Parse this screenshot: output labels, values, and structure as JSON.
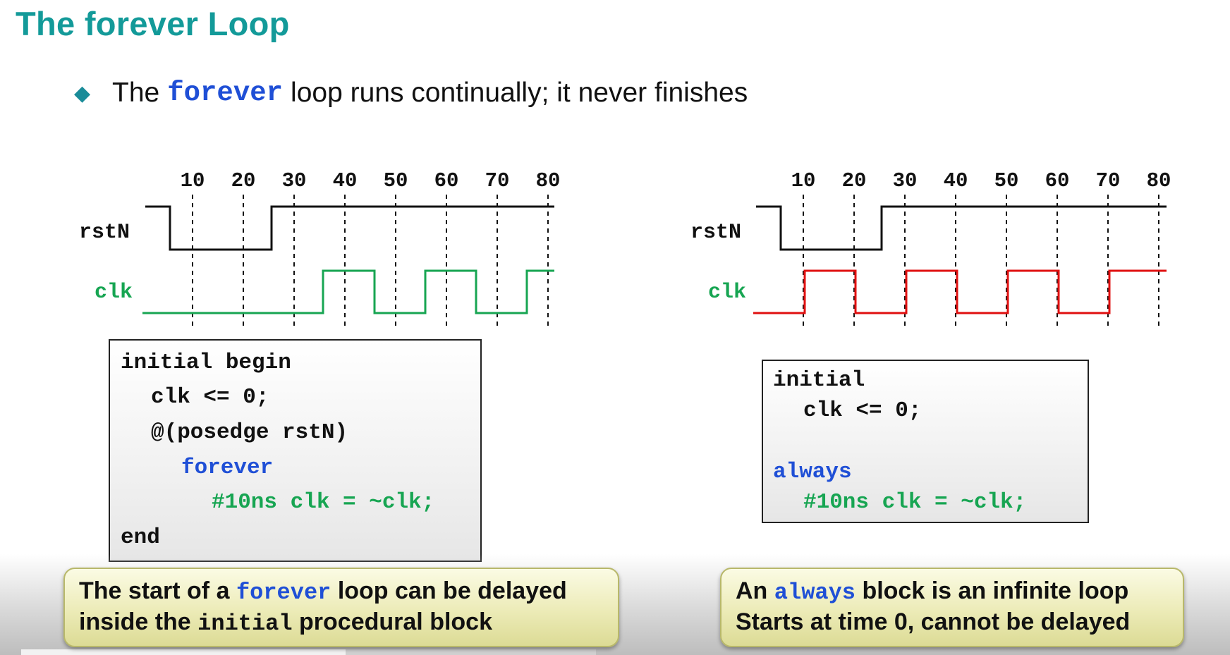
{
  "title": "The forever Loop",
  "bullet": {
    "icon": "diamond-bullet-icon",
    "pre": "The",
    "keyword": "forever",
    "post": "loop runs continually; it never finishes"
  },
  "timing_left": {
    "ticks": [
      "10",
      "20",
      "30",
      "40",
      "50",
      "60",
      "70",
      "80"
    ],
    "rst_label": "rstN",
    "clk_label": "clk",
    "clk_color": "#17a552"
  },
  "timing_right": {
    "ticks": [
      "10",
      "20",
      "30",
      "40",
      "50",
      "60",
      "70",
      "80"
    ],
    "rst_label": "rstN",
    "clk_label": "clk",
    "clk_color": "#e01010"
  },
  "code_left": {
    "line1": "initial begin",
    "line2": "clk <= 0;",
    "line3": "@(posedge rstN)",
    "line4": "forever",
    "line5": "#10ns clk = ~clk;",
    "line6": "end"
  },
  "code_right": {
    "line1": "initial",
    "line2": "clk <= 0;",
    "line3": "always",
    "line4": "#10ns clk = ~clk;"
  },
  "callout_left": {
    "l1_pre": "The start of a",
    "l1_kw": "forever",
    "l1_post": "loop can be delayed",
    "l2_pre": "inside the",
    "l2_kw": "initial",
    "l2_post": "procedural block"
  },
  "callout_right": {
    "l1_pre": "An",
    "l1_kw": "always",
    "l1_post": "block is an infinite loop",
    "l2": "Starts at time 0, cannot be delayed"
  },
  "colors": {
    "title": "#139a99",
    "keyword_blue": "#1f4fd6",
    "code_green": "#17a552",
    "clk_red": "#e01010"
  }
}
